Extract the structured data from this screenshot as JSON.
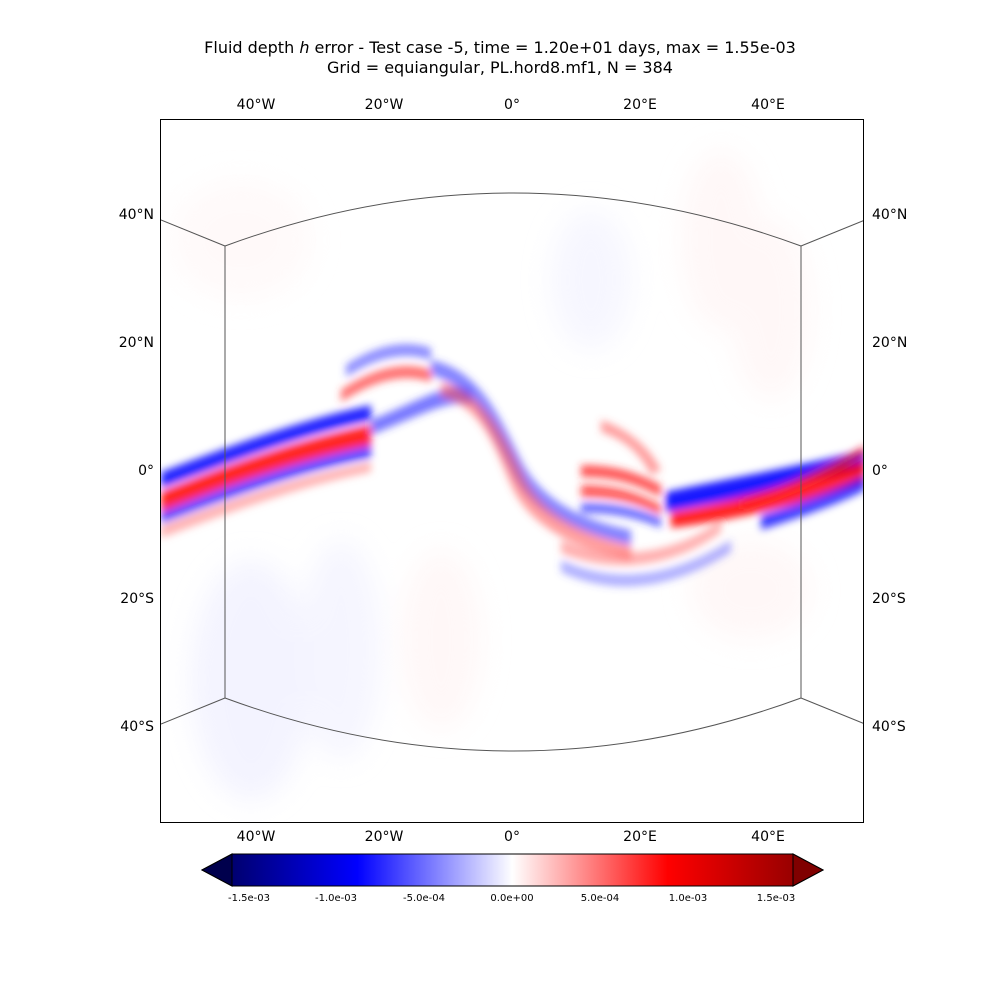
{
  "title": {
    "line1_prefix": "Fluid depth ",
    "line1_var": "h",
    "line1_suffix": " error - Test case -5, time = 1.20e+01 days, max = 1.55e-03",
    "line2": "Grid = equiangular, PL.hord8.mf1, N = 384"
  },
  "map": {
    "extent": {
      "lon": [
        -55,
        55
      ],
      "lat": [
        -55,
        55
      ]
    },
    "lon_ticks": [
      "40°W",
      "20°W",
      "0°",
      "20°E",
      "40°E"
    ],
    "lat_ticks": [
      "40°N",
      "20°N",
      "0°",
      "20°S",
      "40°S"
    ],
    "field": "h error",
    "panel_edges": "cubed-sphere face boundary (equiangular)"
  },
  "colorbar": {
    "colormap": "seismic",
    "extend": "both",
    "range": [
      -0.0016,
      0.0016
    ],
    "ticks": [
      "-1.5e-03",
      "-1.0e-03",
      "-5.0e-04",
      "0.0e+00",
      "5.0e-04",
      "1.0e-03",
      "1.5e-03"
    ],
    "tick_values": [
      -0.0015,
      -0.001,
      -0.0005,
      0.0,
      0.0005,
      0.001,
      0.0015
    ]
  },
  "colors": {
    "negative_extreme": "#00004d",
    "negative": "#0000ff",
    "zero": "#ffffff",
    "positive": "#ff0000",
    "positive_extreme": "#800000"
  }
}
